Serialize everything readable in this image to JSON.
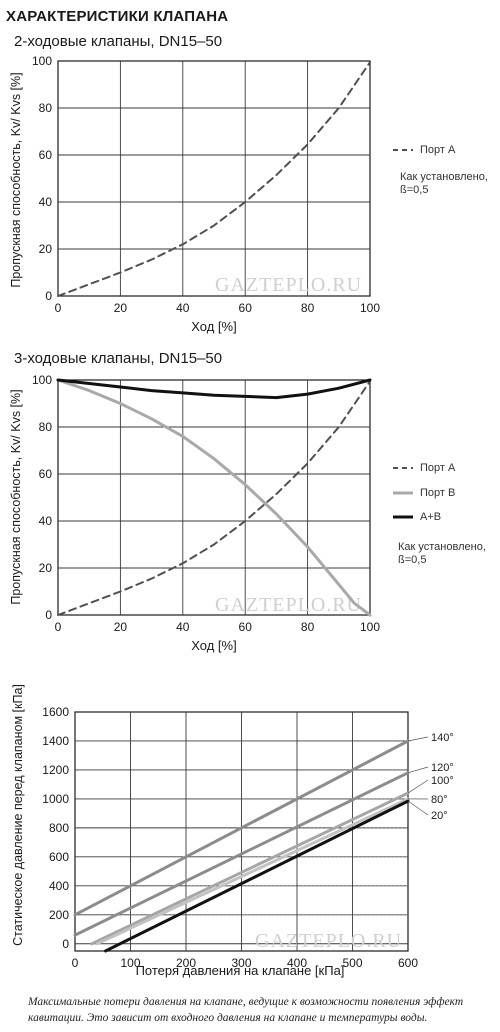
{
  "title": "ХАРАКТЕРИСТИКИ КЛАПАНА",
  "watermark": "GAZTEPLO.RU",
  "caption_lines": [
    "Максимальные потери давления на клапане, ведущие к возможности появления эффект",
    "кавитации. Это зависит от входного давления на клапане и температуры воды."
  ],
  "chart_data": [
    {
      "type": "line",
      "title": "2-ходовые клапаны, DN15–50",
      "xlabel": "Ход [%]",
      "ylabel": "Пропускная способность, Kv/ Kvs [%]",
      "xlim": [
        0,
        100
      ],
      "ylim": [
        0,
        100
      ],
      "x_ticks": [
        "0",
        "20",
        "40",
        "60",
        "80",
        "100"
      ],
      "y_ticks": [
        "0",
        "20",
        "40",
        "60",
        "80",
        "100"
      ],
      "grid": true,
      "legend_position": "right",
      "series": [
        {
          "name": "Порт A",
          "style": "dashed",
          "color": "#505050",
          "x": [
            0,
            10,
            20,
            30,
            40,
            50,
            60,
            70,
            80,
            90,
            100
          ],
          "y": [
            0,
            5,
            10,
            15.5,
            22,
            30,
            40,
            51.5,
            64.5,
            80,
            99.5
          ]
        }
      ],
      "note": [
        "Как установлено,",
        "ß=0,5"
      ]
    },
    {
      "type": "line",
      "title": "3-ходовые клапаны, DN15–50",
      "xlabel": "Ход [%]",
      "ylabel": "Пропускная способность, Kv/ Kvs [%]",
      "xlim": [
        0,
        100
      ],
      "ylim": [
        0,
        100
      ],
      "x_ticks": [
        "0",
        "20",
        "40",
        "60",
        "80",
        "100"
      ],
      "y_ticks": [
        "0",
        "20",
        "40",
        "60",
        "80",
        "100"
      ],
      "grid": true,
      "legend_position": "right",
      "series": [
        {
          "name": "Порт A",
          "style": "dashed",
          "color": "#505050",
          "x": [
            0,
            10,
            20,
            30,
            40,
            50,
            60,
            70,
            80,
            90,
            100
          ],
          "y": [
            0,
            5,
            10,
            15.5,
            22,
            30,
            40,
            51.5,
            64.5,
            80,
            99.5
          ]
        },
        {
          "name": "Порт B",
          "style": "solid",
          "color": "#a9a9a9",
          "x": [
            0,
            10,
            20,
            30,
            40,
            50,
            60,
            70,
            80,
            90,
            95,
            100
          ],
          "y": [
            100,
            95.5,
            90,
            83.5,
            76,
            66.5,
            55.5,
            43,
            29,
            13,
            5,
            0
          ]
        },
        {
          "name": "A+B",
          "style": "solid",
          "color": "#111111",
          "x": [
            0,
            10,
            20,
            30,
            40,
            50,
            60,
            70,
            80,
            90,
            100
          ],
          "y": [
            100,
            98.5,
            97,
            95.5,
            94.5,
            93.5,
            93,
            92.5,
            94,
            96.5,
            100
          ]
        }
      ],
      "note": [
        "Как установлено,",
        "ß=0,5"
      ]
    },
    {
      "type": "line",
      "xlabel": "Потеря давления на клапане [кПа]",
      "ylabel": "Статическое давление перед клапаном [кПа]",
      "xlim": [
        0,
        600
      ],
      "ylim": [
        -50,
        1600
      ],
      "x_ticks": [
        "0",
        "100",
        "200",
        "300",
        "400",
        "500",
        "600"
      ],
      "y_ticks": [
        "0",
        "200",
        "400",
        "600",
        "800",
        "1000",
        "1200",
        "1400",
        "1600"
      ],
      "grid": true,
      "legend_position": "right",
      "series": [
        {
          "name": "140°",
          "color": "#8c8c8c",
          "x": [
            0,
            600
          ],
          "y": [
            200,
            1400
          ]
        },
        {
          "name": "120°",
          "color": "#8c8c8c",
          "x": [
            0,
            600
          ],
          "y": [
            60,
            1180
          ]
        },
        {
          "name": "100°",
          "color": "#a6a6a6",
          "x": [
            30,
            600
          ],
          "y": [
            0,
            1040
          ]
        },
        {
          "name": "80°",
          "color": "#c2c2c2",
          "x": [
            40,
            600
          ],
          "y": [
            0,
            1000
          ]
        },
        {
          "name": "20°",
          "color": "#111111",
          "x": [
            55,
            600
          ],
          "y": [
            -50,
            985
          ]
        }
      ],
      "reference_lines": [
        {
          "x": 100,
          "y": 200
        },
        {
          "x": 200,
          "y": 400
        },
        {
          "x": 300,
          "y": 600
        },
        {
          "x": 400,
          "y": 800
        },
        {
          "x": 500,
          "y": 1000
        }
      ]
    }
  ]
}
